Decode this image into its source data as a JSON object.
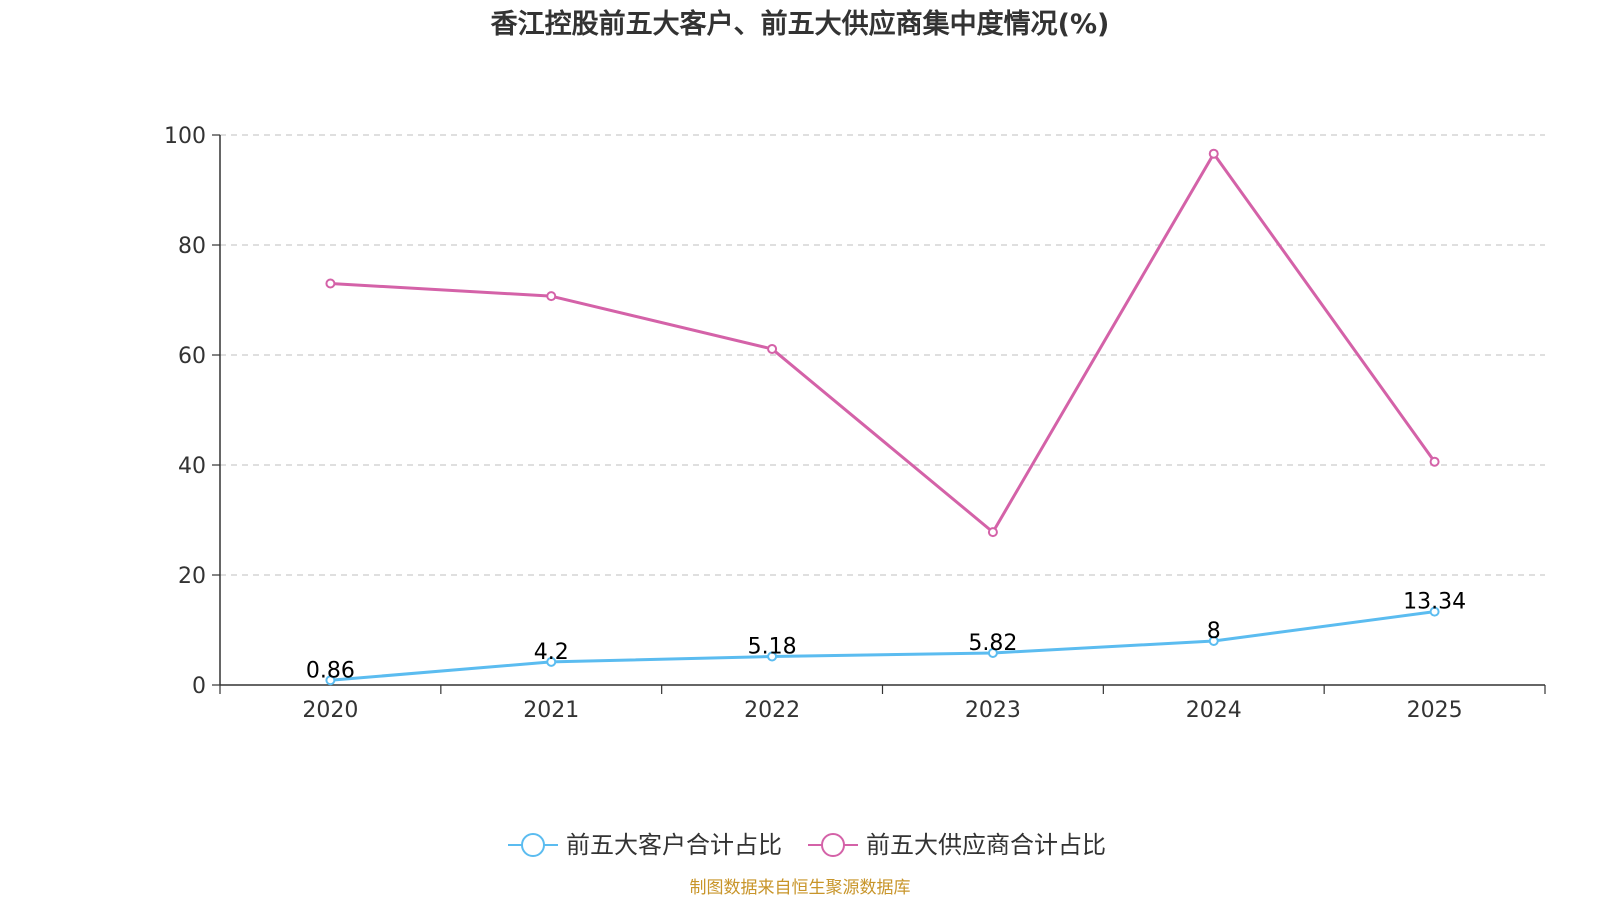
{
  "chart_data": {
    "type": "line",
    "title": "香江控股前五大客户、前五大供应商集中度情况(%)",
    "categories": [
      "2020",
      "2021",
      "2022",
      "2023",
      "2024",
      "2025"
    ],
    "ylim": [
      0,
      100
    ],
    "yticks": [
      0,
      20,
      40,
      60,
      80,
      100
    ],
    "grid": true,
    "legend_position": "bottom-center",
    "series": [
      {
        "name": "前五大客户合计占比",
        "color": "#5bbcf0",
        "values": [
          0.86,
          4.2,
          5.18,
          5.82,
          8,
          13.34
        ],
        "labels": [
          "0.86",
          "4.2",
          "5.18",
          "5.82",
          "8",
          "13.34"
        ],
        "show_labels": true
      },
      {
        "name": "前五大供应商合计占比",
        "color": "#d462a8",
        "values": [
          73.0,
          70.7,
          61.1,
          27.8,
          96.6,
          40.6
        ],
        "show_labels": false
      }
    ],
    "source": "制图数据来自恒生聚源数据库",
    "source_color": "#c8952a"
  }
}
